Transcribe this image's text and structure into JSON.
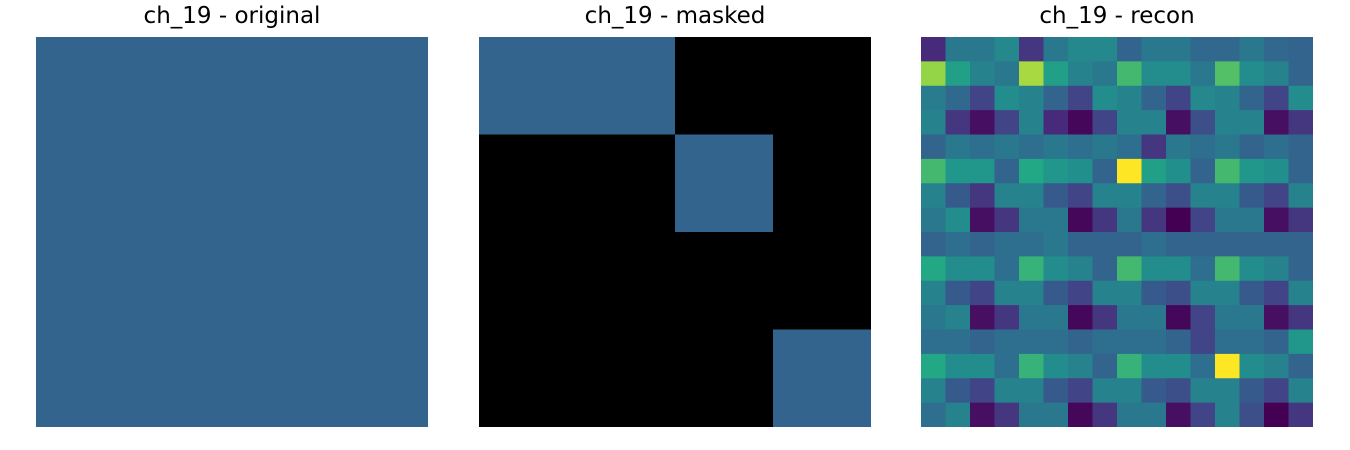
{
  "chart_data": [
    {
      "type": "heatmap",
      "title": "ch_19 - original",
      "grid_size": 16,
      "fill_value": 0.4,
      "colormap": "viridis",
      "axes": "off"
    },
    {
      "type": "heatmap",
      "title": "ch_19 - masked",
      "grid_size": 4,
      "fill_value": 0.4,
      "mask_color": "#000000",
      "visible_blocks": [
        [
          0,
          0
        ],
        [
          0,
          1
        ],
        [
          1,
          2
        ],
        [
          3,
          3
        ]
      ],
      "colormap": "viridis",
      "axes": "off"
    },
    {
      "type": "heatmap",
      "title": "ch_19 - recon",
      "grid_size": 16,
      "colormap": "viridis",
      "axes": "off",
      "values": [
        [
          0.15,
          0.5,
          0.5,
          0.58,
          0.2,
          0.5,
          0.58,
          0.58,
          0.4,
          0.5,
          0.5,
          0.42,
          0.42,
          0.5,
          0.42,
          0.4
        ],
        [
          0.9,
          0.7,
          0.55,
          0.5,
          0.92,
          0.7,
          0.55,
          0.5,
          0.8,
          0.6,
          0.6,
          0.5,
          0.82,
          0.6,
          0.55,
          0.4
        ],
        [
          0.52,
          0.42,
          0.25,
          0.6,
          0.55,
          0.4,
          0.25,
          0.6,
          0.55,
          0.4,
          0.25,
          0.58,
          0.55,
          0.4,
          0.25,
          0.6
        ],
        [
          0.55,
          0.2,
          0.05,
          0.25,
          0.55,
          0.15,
          0.02,
          0.25,
          0.55,
          0.55,
          0.05,
          0.3,
          0.55,
          0.55,
          0.05,
          0.2
        ],
        [
          0.4,
          0.5,
          0.45,
          0.5,
          0.45,
          0.5,
          0.45,
          0.5,
          0.45,
          0.2,
          0.5,
          0.45,
          0.5,
          0.4,
          0.45,
          0.4
        ],
        [
          0.8,
          0.65,
          0.65,
          0.4,
          0.75,
          0.65,
          0.62,
          0.4,
          1.0,
          0.7,
          0.62,
          0.4,
          0.8,
          0.65,
          0.62,
          0.4
        ],
        [
          0.55,
          0.35,
          0.2,
          0.55,
          0.55,
          0.35,
          0.25,
          0.55,
          0.55,
          0.4,
          0.3,
          0.55,
          0.55,
          0.35,
          0.25,
          0.55
        ],
        [
          0.5,
          0.6,
          0.05,
          0.2,
          0.5,
          0.5,
          0.02,
          0.2,
          0.5,
          0.2,
          0.0,
          0.25,
          0.5,
          0.5,
          0.05,
          0.2
        ],
        [
          0.4,
          0.45,
          0.4,
          0.45,
          0.45,
          0.5,
          0.4,
          0.4,
          0.4,
          0.45,
          0.4,
          0.4,
          0.4,
          0.4,
          0.4,
          0.4
        ],
        [
          0.75,
          0.6,
          0.6,
          0.45,
          0.78,
          0.6,
          0.55,
          0.4,
          0.8,
          0.6,
          0.6,
          0.45,
          0.8,
          0.6,
          0.55,
          0.4
        ],
        [
          0.55,
          0.35,
          0.25,
          0.55,
          0.55,
          0.35,
          0.25,
          0.55,
          0.55,
          0.35,
          0.3,
          0.55,
          0.55,
          0.35,
          0.25,
          0.55
        ],
        [
          0.5,
          0.55,
          0.05,
          0.2,
          0.5,
          0.5,
          0.02,
          0.2,
          0.5,
          0.5,
          0.02,
          0.25,
          0.5,
          0.5,
          0.05,
          0.2
        ],
        [
          0.45,
          0.45,
          0.4,
          0.45,
          0.45,
          0.45,
          0.4,
          0.45,
          0.45,
          0.45,
          0.4,
          0.25,
          0.45,
          0.45,
          0.4,
          0.65
        ],
        [
          0.75,
          0.6,
          0.6,
          0.45,
          0.78,
          0.6,
          0.55,
          0.4,
          0.78,
          0.6,
          0.6,
          0.45,
          1.0,
          0.6,
          0.55,
          0.4
        ],
        [
          0.55,
          0.35,
          0.25,
          0.55,
          0.55,
          0.35,
          0.25,
          0.55,
          0.55,
          0.35,
          0.3,
          0.55,
          0.55,
          0.35,
          0.25,
          0.55
        ],
        [
          0.45,
          0.55,
          0.05,
          0.2,
          0.5,
          0.5,
          0.02,
          0.2,
          0.5,
          0.5,
          0.05,
          0.25,
          0.55,
          0.3,
          0.0,
          0.2
        ]
      ]
    }
  ]
}
